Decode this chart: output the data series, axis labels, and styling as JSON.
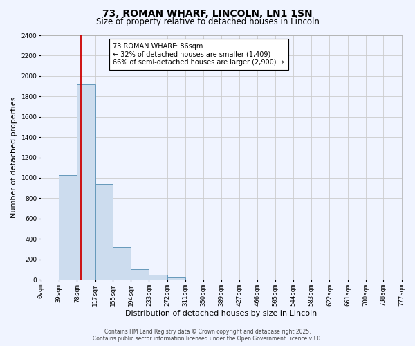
{
  "title": "73, ROMAN WHARF, LINCOLN, LN1 1SN",
  "subtitle": "Size of property relative to detached houses in Lincoln",
  "xlabel": "Distribution of detached houses by size in Lincoln",
  "ylabel": "Number of detached properties",
  "bin_labels": [
    "0sqm",
    "39sqm",
    "78sqm",
    "117sqm",
    "155sqm",
    "194sqm",
    "233sqm",
    "272sqm",
    "311sqm",
    "350sqm",
    "389sqm",
    "427sqm",
    "466sqm",
    "505sqm",
    "544sqm",
    "583sqm",
    "622sqm",
    "661sqm",
    "700sqm",
    "738sqm",
    "777sqm"
  ],
  "bar_values": [
    0,
    1030,
    1920,
    940,
    320,
    105,
    50,
    20,
    0,
    0,
    0,
    0,
    0,
    0,
    0,
    0,
    0,
    0,
    0,
    0
  ],
  "bar_color": "#ccdcee",
  "bar_edge_color": "#6699bb",
  "vline_x": 86,
  "bin_edges": [
    0,
    39,
    78,
    117,
    155,
    194,
    233,
    272,
    311,
    350,
    389,
    427,
    466,
    505,
    544,
    583,
    622,
    661,
    700,
    738,
    777
  ],
  "ylim": [
    0,
    2400
  ],
  "yticks": [
    0,
    200,
    400,
    600,
    800,
    1000,
    1200,
    1400,
    1600,
    1800,
    2000,
    2200,
    2400
  ],
  "annotation_title": "73 ROMAN WHARF: 86sqm",
  "annotation_line1": "← 32% of detached houses are smaller (1,409)",
  "annotation_line2": "66% of semi-detached houses are larger (2,900) →",
  "footer1": "Contains HM Land Registry data © Crown copyright and database right 2025.",
  "footer2": "Contains public sector information licensed under the Open Government Licence v3.0.",
  "bg_color": "#f0f4ff",
  "grid_color": "#cccccc",
  "title_fontsize": 10,
  "subtitle_fontsize": 8.5,
  "axis_label_fontsize": 8,
  "tick_fontsize": 6.5,
  "ann_fontsize": 7,
  "footer_fontsize": 5.5
}
